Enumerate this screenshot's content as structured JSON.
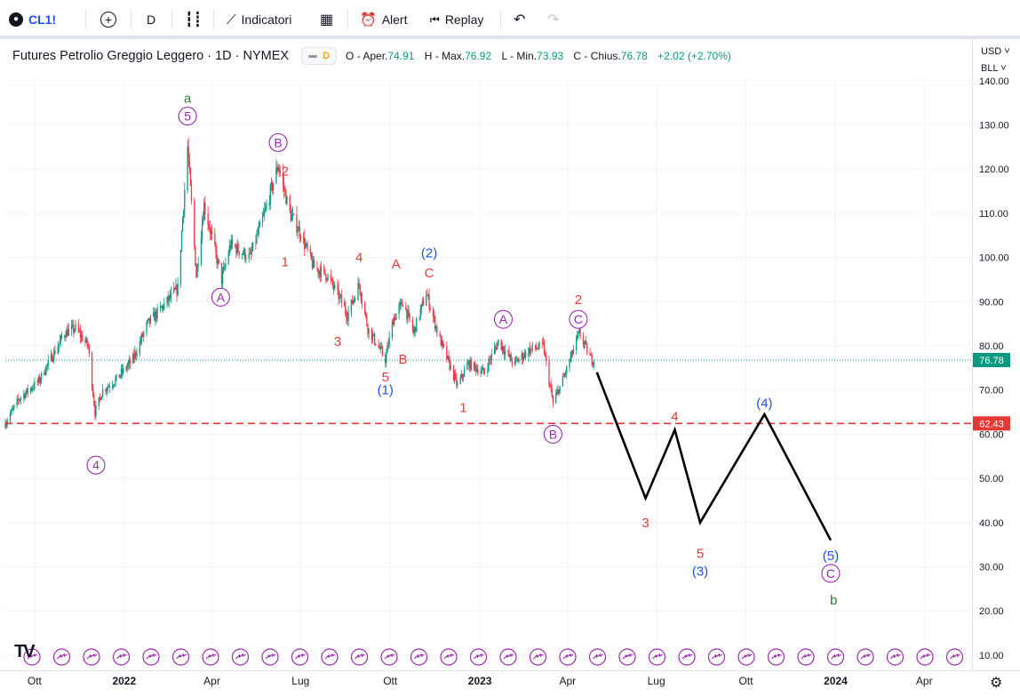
{
  "toolbar": {
    "symbol": "CL1!",
    "interval": "D",
    "indicators_label": "Indicatori",
    "alert_label": "Alert",
    "replay_label": "Replay"
  },
  "legend": {
    "title": "Futures Petrolio Greggio Leggero · 1D · NYMEX",
    "badge": "D",
    "o_label": "O - Aper.",
    "o_value": "74.91",
    "h_label": "H - Max.",
    "h_value": "76.92",
    "l_label": "L - Min.",
    "l_value": "73.93",
    "c_label": "C - Chius.",
    "c_value": "76.78",
    "change": "+2.02 (+2.70%)"
  },
  "price_axis": {
    "currency": "USD",
    "unit": "BLL",
    "current_price_label": "76.78",
    "level_label": "62.43"
  },
  "colors": {
    "up": "#089981",
    "down": "#f23645",
    "wave_red": "#e53935",
    "wave_blue": "#1e53e5",
    "wave_purple": "#9c27b0",
    "wave_green": "#2e7d32",
    "level_line": "#e53935",
    "projection": "#000000"
  },
  "chart_data": {
    "type": "candlestick",
    "title": "Futures Petrolio Greggio Leggero · 1D · NYMEX",
    "xlabel": "",
    "ylabel": "",
    "ylim": [
      5,
      145
    ],
    "yticks": [
      10,
      20,
      30,
      40,
      50,
      60,
      70,
      80,
      90,
      100,
      110,
      120,
      130,
      140
    ],
    "x_range": [
      "2021-09-01",
      "2024-05-20"
    ],
    "x_ticks": [
      {
        "date": "2021-10-01",
        "label": "Ott"
      },
      {
        "date": "2022-01-01",
        "label": "2022"
      },
      {
        "date": "2022-04-01",
        "label": "Apr"
      },
      {
        "date": "2022-07-01",
        "label": "Lug"
      },
      {
        "date": "2022-10-01",
        "label": "Ott"
      },
      {
        "date": "2023-01-01",
        "label": "2023"
      },
      {
        "date": "2023-04-01",
        "label": "Apr"
      },
      {
        "date": "2023-07-01",
        "label": "Lug"
      },
      {
        "date": "2023-10-01",
        "label": "Ott"
      },
      {
        "date": "2024-01-01",
        "label": "2024"
      },
      {
        "date": "2024-04-01",
        "label": "Apr"
      }
    ],
    "price_path": [
      [
        "2021-09-01",
        62.5
      ],
      [
        "2021-09-15",
        68
      ],
      [
        "2021-10-05",
        72
      ],
      [
        "2021-10-20",
        78
      ],
      [
        "2021-11-01",
        83
      ],
      [
        "2021-11-12",
        84
      ],
      [
        "2021-11-25",
        80
      ],
      [
        "2021-12-02",
        65
      ],
      [
        "2021-12-10",
        70
      ],
      [
        "2021-12-22",
        72
      ],
      [
        "2022-01-10",
        77
      ],
      [
        "2022-01-25",
        85
      ],
      [
        "2022-02-10",
        89
      ],
      [
        "2022-02-25",
        93
      ],
      [
        "2022-03-07",
        125
      ],
      [
        "2022-03-16",
        96
      ],
      [
        "2022-03-24",
        112
      ],
      [
        "2022-04-11",
        95
      ],
      [
        "2022-04-20",
        103
      ],
      [
        "2022-05-10",
        100
      ],
      [
        "2022-05-25",
        110
      ],
      [
        "2022-06-08",
        121
      ],
      [
        "2022-06-20",
        110
      ],
      [
        "2022-06-30",
        106
      ],
      [
        "2022-07-14",
        98
      ],
      [
        "2022-07-28",
        96
      ],
      [
        "2022-08-10",
        91
      ],
      [
        "2022-08-18",
        87
      ],
      [
        "2022-08-30",
        94
      ],
      [
        "2022-09-08",
        84
      ],
      [
        "2022-09-26",
        77
      ],
      [
        "2022-10-04",
        86
      ],
      [
        "2022-10-14",
        90
      ],
      [
        "2022-10-25",
        83
      ],
      [
        "2022-11-07",
        92
      ],
      [
        "2022-11-20",
        82
      ],
      [
        "2022-12-09",
        71
      ],
      [
        "2022-12-20",
        76
      ],
      [
        "2023-01-05",
        74
      ],
      [
        "2023-01-20",
        81
      ],
      [
        "2023-02-05",
        76
      ],
      [
        "2023-02-20",
        79
      ],
      [
        "2023-03-07",
        80
      ],
      [
        "2023-03-17",
        67
      ],
      [
        "2023-03-30",
        74
      ],
      [
        "2023-04-10",
        81
      ],
      [
        "2023-04-13",
        83
      ],
      [
        "2023-04-25",
        77
      ],
      [
        "2023-04-28",
        76.78
      ]
    ],
    "projection": [
      [
        "2023-05-01",
        74
      ],
      [
        "2023-06-20",
        45.5
      ],
      [
        "2023-07-20",
        61
      ],
      [
        "2023-08-15",
        40
      ],
      [
        "2023-10-20",
        64.5
      ],
      [
        "2023-12-27",
        36
      ]
    ],
    "horizontal_level": 62.43,
    "last_price": 76.78,
    "annotations": [
      {
        "text": "a",
        "date": "2022-03-07",
        "price": 136,
        "color": "green"
      },
      {
        "text": "5",
        "date": "2022-03-07",
        "price": 132,
        "color": "purple",
        "circle": true
      },
      {
        "text": "B",
        "date": "2022-06-08",
        "price": 126,
        "color": "purple",
        "circle": true
      },
      {
        "text": "2",
        "date": "2022-06-15",
        "price": 119.5,
        "color": "red"
      },
      {
        "text": "A",
        "date": "2022-04-10",
        "price": 91,
        "color": "purple",
        "circle": true
      },
      {
        "text": "4",
        "date": "2021-12-03",
        "price": 53,
        "color": "purple",
        "circle": true
      },
      {
        "text": "1",
        "date": "2022-06-15",
        "price": 99,
        "color": "red"
      },
      {
        "text": "4",
        "date": "2022-08-30",
        "price": 100,
        "color": "red"
      },
      {
        "text": "3",
        "date": "2022-08-08",
        "price": 81,
        "color": "red"
      },
      {
        "text": "A",
        "date": "2022-10-07",
        "price": 98.5,
        "color": "red"
      },
      {
        "text": "(2)",
        "date": "2022-11-10",
        "price": 101,
        "color": "blue"
      },
      {
        "text": "C",
        "date": "2022-11-10",
        "price": 96.5,
        "color": "red"
      },
      {
        "text": "B",
        "date": "2022-10-14",
        "price": 77,
        "color": "red"
      },
      {
        "text": "5",
        "date": "2022-09-26",
        "price": 73,
        "color": "red"
      },
      {
        "text": "(1)",
        "date": "2022-09-26",
        "price": 70,
        "color": "blue"
      },
      {
        "text": "1",
        "date": "2022-12-15",
        "price": 66,
        "color": "red"
      },
      {
        "text": "A",
        "date": "2023-01-25",
        "price": 86,
        "color": "purple",
        "circle": true
      },
      {
        "text": "2",
        "date": "2023-04-12",
        "price": 90.5,
        "color": "red"
      },
      {
        "text": "C",
        "date": "2023-04-12",
        "price": 86,
        "color": "purple",
        "circle": true
      },
      {
        "text": "B",
        "date": "2023-03-17",
        "price": 60,
        "color": "purple",
        "circle": true
      },
      {
        "text": "3",
        "date": "2023-06-20",
        "price": 40,
        "color": "red"
      },
      {
        "text": "4",
        "date": "2023-07-20",
        "price": 64,
        "color": "red"
      },
      {
        "text": "5",
        "date": "2023-08-15",
        "price": 33,
        "color": "red"
      },
      {
        "text": "(3)",
        "date": "2023-08-15",
        "price": 29,
        "color": "blue"
      },
      {
        "text": "(4)",
        "date": "2023-10-20",
        "price": 67,
        "color": "blue"
      },
      {
        "text": "(5)",
        "date": "2023-12-27",
        "price": 32.5,
        "color": "blue"
      },
      {
        "text": "C",
        "date": "2023-12-27",
        "price": 28.5,
        "color": "purple",
        "circle": true
      },
      {
        "text": "b",
        "date": "2023-12-30",
        "price": 22.5,
        "color": "green"
      }
    ]
  }
}
